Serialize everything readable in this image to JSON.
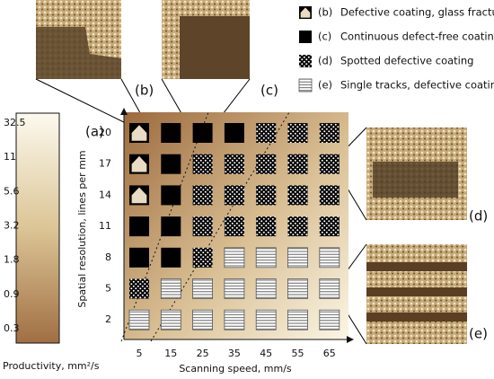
{
  "chart_data": {
    "type": "symbol-matrix",
    "label": "(a)",
    "x_label": "Scanning speed, mm/s",
    "y_label": "Spatial resolution, lines per mm",
    "x": [
      5,
      15,
      25,
      35,
      45,
      55,
      65
    ],
    "y": [
      20,
      17,
      14,
      11,
      8,
      5,
      2
    ],
    "legend": [
      {
        "marker": "(b)",
        "label": "Defective coating, glass fracturing"
      },
      {
        "marker": "(c)",
        "label": "Continuous defect-free coating"
      },
      {
        "marker": "(d)",
        "label": "Spotted defective coating"
      },
      {
        "marker": "(e)",
        "label": "Single tracks, defective coating"
      }
    ],
    "cells": [
      [
        "(b)",
        "(c)",
        "(c)",
        "(c)",
        "(d)",
        "(d)",
        "(d)"
      ],
      [
        "(b)",
        "(c)",
        "(d)",
        "(d)",
        "(d)",
        "(d)",
        "(d)"
      ],
      [
        "(b)",
        "(c)",
        "(d)",
        "(d)",
        "(d)",
        "(d)",
        "(d)"
      ],
      [
        "(c)",
        "(c)",
        "(d)",
        "(d)",
        "(d)",
        "(d)",
        "(d)"
      ],
      [
        "(c)",
        "(c)",
        "(d)",
        "(e)",
        "(e)",
        "(e)",
        "(e)"
      ],
      [
        "(d)",
        "(e)",
        "(e)",
        "(e)",
        "(e)",
        "(e)",
        "(e)"
      ],
      [
        "(e)",
        "(e)",
        "(e)",
        "(e)",
        "(e)",
        "(e)",
        "(e)"
      ]
    ],
    "colorbar": {
      "label": "Productivity, mm²/s",
      "ticks": [
        32.5,
        11,
        5.6,
        3.2,
        1.8,
        0.9,
        0.3
      ]
    },
    "panels": [
      "(b)",
      "(c)",
      "(d)",
      "(e)"
    ]
  }
}
